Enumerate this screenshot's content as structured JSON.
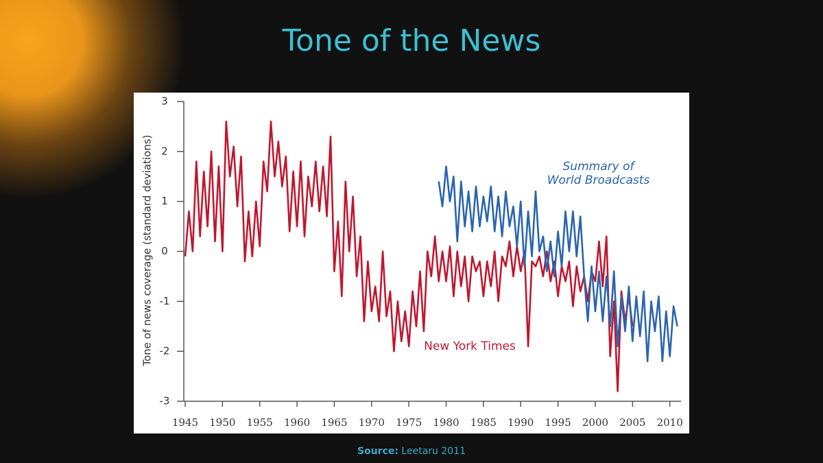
{
  "title": "Tone of the News",
  "source": {
    "label": "Source:",
    "text": "Leetaru 2011"
  },
  "chart_data": {
    "type": "line",
    "ylabel": "Tone of news coverage (standard deviations)",
    "xlim": [
      1945,
      2011.5
    ],
    "ylim": [
      -3,
      3
    ],
    "xticks": [
      1945,
      1950,
      1955,
      1960,
      1965,
      1970,
      1975,
      1980,
      1985,
      1990,
      1995,
      2000,
      2005,
      2010
    ],
    "yticks": [
      -3,
      -2,
      -1,
      0,
      1,
      2,
      3
    ],
    "grid": false,
    "series": [
      {
        "name": "New York Times",
        "color": "#c0172f",
        "x": [
          1945,
          1945.5,
          1946,
          1946.5,
          1947,
          1947.5,
          1948,
          1948.5,
          1949,
          1949.5,
          1950,
          1950.5,
          1951,
          1951.5,
          1952,
          1952.5,
          1953,
          1953.5,
          1954,
          1954.5,
          1955,
          1955.5,
          1956,
          1956.5,
          1957,
          1957.5,
          1958,
          1958.5,
          1959,
          1959.5,
          1960,
          1960.5,
          1961,
          1961.5,
          1962,
          1962.5,
          1963,
          1963.5,
          1964,
          1964.5,
          1965,
          1965.5,
          1966,
          1966.5,
          1967,
          1967.5,
          1968,
          1968.5,
          1969,
          1969.5,
          1970,
          1970.5,
          1971,
          1971.5,
          1972,
          1972.5,
          1973,
          1973.5,
          1974,
          1974.5,
          1975,
          1975.5,
          1976,
          1976.5,
          1977,
          1977.5,
          1978,
          1978.5,
          1979,
          1979.5,
          1980,
          1980.5,
          1981,
          1981.5,
          1982,
          1982.5,
          1983,
          1983.5,
          1984,
          1984.5,
          1985,
          1985.5,
          1986,
          1986.5,
          1987,
          1987.5,
          1988,
          1988.5,
          1989,
          1989.5,
          1990,
          1990.5,
          1991,
          1991.5,
          1992,
          1992.5,
          1993,
          1993.5,
          1994,
          1994.5,
          1995,
          1995.5,
          1996,
          1996.5,
          1997,
          1997.5,
          1998,
          1998.5,
          1999,
          1999.5,
          2000,
          2000.5,
          2001,
          2001.5,
          2002,
          2002.5,
          2003,
          2003.5,
          2004,
          2004.5,
          2005
        ],
        "values": [
          -0.1,
          0.8,
          0.0,
          1.8,
          0.3,
          1.6,
          0.5,
          2.0,
          0.2,
          1.7,
          0.0,
          2.6,
          1.5,
          2.1,
          0.9,
          1.9,
          -0.2,
          0.8,
          -0.1,
          1.0,
          0.1,
          1.8,
          1.2,
          2.6,
          1.5,
          2.2,
          1.3,
          1.9,
          0.4,
          1.6,
          0.5,
          1.8,
          0.3,
          1.5,
          0.9,
          1.8,
          0.8,
          1.7,
          0.7,
          2.3,
          -0.4,
          0.6,
          -0.9,
          1.4,
          0.0,
          1.1,
          -0.5,
          0.3,
          -1.4,
          -0.2,
          -1.2,
          -0.7,
          -1.4,
          0.0,
          -1.3,
          -0.8,
          -2.0,
          -1.0,
          -1.8,
          -1.2,
          -1.9,
          -0.8,
          -1.5,
          -0.4,
          -1.6,
          0.0,
          -0.5,
          0.3,
          -0.6,
          0.0,
          -0.6,
          0.1,
          -0.9,
          0.0,
          -0.7,
          -0.1,
          -1.0,
          -0.1,
          -0.4,
          -0.2,
          -0.9,
          -0.2,
          -0.7,
          0.0,
          -1.0,
          -0.1,
          -0.3,
          0.2,
          -0.5,
          0.1,
          -0.4,
          0.0,
          -1.9,
          -0.2,
          -0.3,
          -0.1,
          -0.5,
          0.0,
          -0.6,
          -0.2,
          -0.9,
          -0.3,
          -0.6,
          -0.2,
          -1.1,
          -0.3,
          -0.8,
          -0.5,
          -1.0,
          -0.4,
          -0.6,
          0.2,
          -0.7,
          0.3,
          -2.1,
          -1.0,
          -2.8,
          -0.8,
          -1.4,
          -0.9,
          -1.5
        ]
      },
      {
        "name": "Summary of World Broadcasts",
        "color": "#2a64b0",
        "x": [
          1979,
          1979.5,
          1980,
          1980.5,
          1981,
          1981.5,
          1982,
          1982.5,
          1983,
          1983.5,
          1984,
          1984.5,
          1985,
          1985.5,
          1986,
          1986.5,
          1987,
          1987.5,
          1988,
          1988.5,
          1989,
          1989.5,
          1990,
          1990.5,
          1991,
          1991.5,
          1992,
          1992.5,
          1993,
          1993.5,
          1994,
          1994.5,
          1995,
          1995.5,
          1996,
          1996.5,
          1997,
          1997.5,
          1998,
          1998.5,
          1999,
          1999.5,
          2000,
          2000.5,
          2001,
          2001.5,
          2002,
          2002.5,
          2003,
          2003.5,
          2004,
          2004.5,
          2005,
          2005.5,
          2006,
          2006.5,
          2007,
          2007.5,
          2008,
          2008.5,
          2009,
          2009.5,
          2010,
          2010.5,
          2011
        ],
        "values": [
          1.4,
          0.9,
          1.7,
          1.0,
          1.5,
          0.2,
          1.4,
          0.5,
          1.2,
          0.4,
          1.3,
          0.5,
          1.1,
          0.6,
          1.3,
          0.4,
          1.1,
          0.3,
          1.2,
          0.5,
          0.9,
          0.1,
          1.0,
          -0.3,
          0.8,
          -0.1,
          1.2,
          0.0,
          0.3,
          -0.4,
          0.2,
          -0.5,
          0.4,
          -0.3,
          0.8,
          0.0,
          0.8,
          -0.1,
          0.7,
          -0.5,
          -1.4,
          -0.3,
          -1.2,
          -0.4,
          -1.4,
          -0.5,
          -1.5,
          -0.4,
          -1.9,
          -0.9,
          -1.6,
          -0.7,
          -1.8,
          -0.9,
          -1.7,
          -0.8,
          -2.2,
          -1.0,
          -1.6,
          -0.9,
          -2.2,
          -1.2,
          -2.1,
          -1.1,
          -1.5
        ]
      }
    ]
  }
}
